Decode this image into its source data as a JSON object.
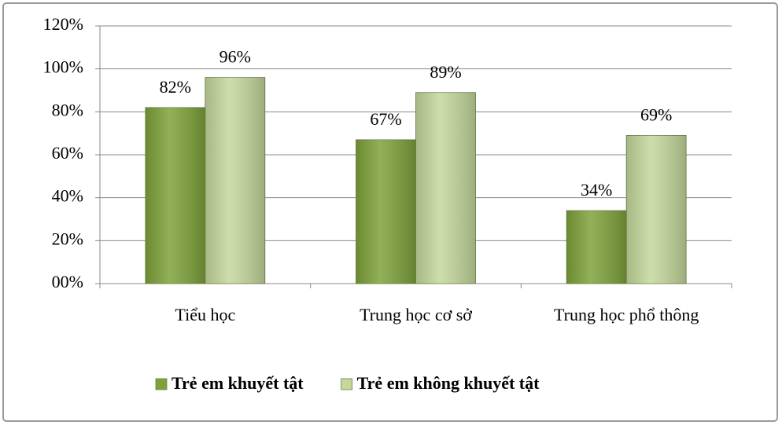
{
  "chart_data": {
    "type": "bar",
    "categories": [
      "Tiểu học",
      "Trung học cơ sở",
      "Trung học phổ thông"
    ],
    "series": [
      {
        "name": "Trẻ em khuyết tật",
        "color": "#7ea23a",
        "values": [
          82,
          67,
          34
        ],
        "value_labels": [
          "82%",
          "67%",
          "34%"
        ]
      },
      {
        "name": "Trẻ em không khuyết tật",
        "color": "#c4d89c",
        "values": [
          96,
          89,
          69
        ],
        "value_labels": [
          "96%",
          "89%",
          "69%"
        ]
      }
    ],
    "ylim": [
      0,
      120
    ],
    "yticks": [
      {
        "value": 0,
        "label": "00%"
      },
      {
        "value": 20,
        "label": "20%"
      },
      {
        "value": 40,
        "label": "40%"
      },
      {
        "value": 60,
        "label": "60%"
      },
      {
        "value": 80,
        "label": "80%"
      },
      {
        "value": 100,
        "label": "100%"
      },
      {
        "value": 120,
        "label": "120%"
      }
    ],
    "grid": true,
    "legend": "bottom"
  }
}
